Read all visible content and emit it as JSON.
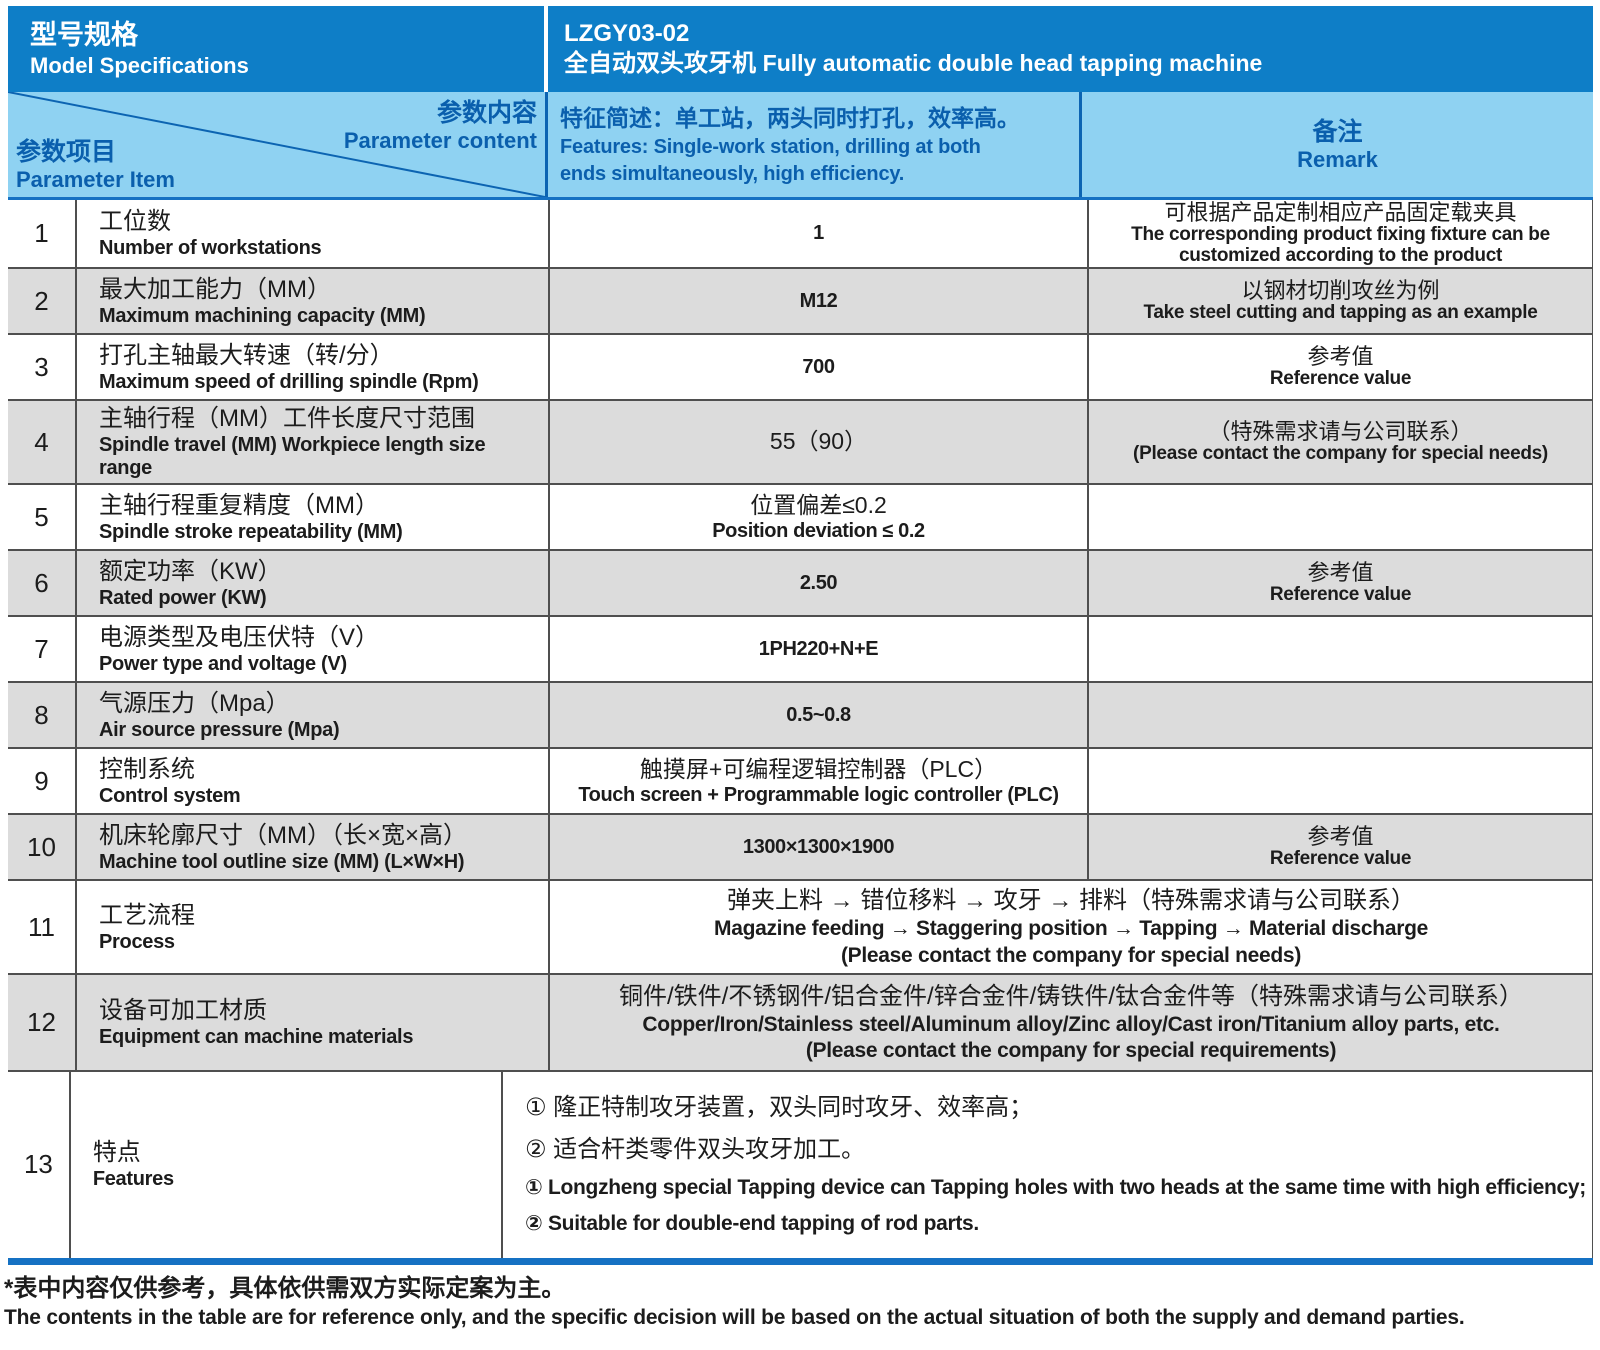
{
  "colors": {
    "blue": "#0e7ec7",
    "light_blue": "#8fd2f2",
    "deep_blue": "#0a5fad",
    "div_blue": "#0c64b2",
    "bar_blue": "#1571c3",
    "gray_row": "#dcdcdc",
    "border": "#4f4f4f",
    "ink": "#1c1c1c"
  },
  "header": {
    "model_label_zh": "型号规格",
    "model_label_en": "Model Specifications",
    "model_code": "LZGY03-02",
    "model_name_zh": "全自动双头攻牙机",
    "model_name_en": "Fully automatic double head tapping machine",
    "param_content_zh": "参数内容",
    "param_content_en": "Parameter content",
    "param_item_zh": "参数项目",
    "param_item_en": "Parameter Item",
    "features_zh": "特征简述：单工站，两头同时打孔，效率高。",
    "features_en_line1": "Features: Single-work station, drilling at both",
    "features_en_line2": "ends simultaneously, high efficiency.",
    "remark_zh": "备注",
    "remark_en": "Remark"
  },
  "rows": [
    {
      "num": "1",
      "item_zh": "工位数",
      "item_en": "Number of workstations",
      "value": [
        "1"
      ],
      "remark": [
        "可根据产品定制相应产品固定载夹具",
        "The corresponding product fixing fixture can be",
        "customized according to the product"
      ]
    },
    {
      "num": "2",
      "item_zh": "最大加工能力（MM）",
      "item_en": "Maximum machining capacity (MM)",
      "value": [
        "M12"
      ],
      "remark": [
        "以钢材切削攻丝为例",
        "Take steel cutting and tapping as an example"
      ]
    },
    {
      "num": "3",
      "item_zh": "打孔主轴最大转速（转/分）",
      "item_en": "Maximum speed of drilling spindle (Rpm)",
      "value": [
        "700"
      ],
      "remark": [
        "参考值",
        "Reference value"
      ]
    },
    {
      "num": "4",
      "item_zh": "主轴行程（MM）工件长度尺寸范围",
      "item_en": "Spindle travel (MM) Workpiece length size range",
      "value": [
        "55（90）"
      ],
      "remark": [
        "（特殊需求请与公司联系）",
        "(Please contact the company for special needs)"
      ]
    },
    {
      "num": "5",
      "item_zh": "主轴行程重复精度（MM）",
      "item_en": "Spindle stroke repeatability (MM)",
      "value": [
        "位置偏差≤0.2",
        "Position deviation ≤ 0.2"
      ],
      "remark": []
    },
    {
      "num": "6",
      "item_zh": "额定功率（KW）",
      "item_en": "Rated power (KW)",
      "value": [
        "2.50"
      ],
      "remark": [
        "参考值",
        "Reference value"
      ]
    },
    {
      "num": "7",
      "item_zh": "电源类型及电压伏特（V）",
      "item_en": "Power type and voltage (V)",
      "value": [
        "1PH220+N+E"
      ],
      "remark": []
    },
    {
      "num": "8",
      "item_zh": "气源压力（Mpa）",
      "item_en": "Air source pressure (Mpa)",
      "value": [
        "0.5~0.8"
      ],
      "remark": []
    },
    {
      "num": "9",
      "item_zh": "控制系统",
      "item_en": "Control system",
      "value": [
        "触摸屏+可编程逻辑控制器（PLC）",
        "Touch screen + Programmable logic controller (PLC)"
      ],
      "remark": []
    },
    {
      "num": "10",
      "item_zh": "机床轮廓尺寸（MM）（长×宽×高）",
      "item_en": "Machine tool outline size (MM) (L×W×H)",
      "value": [
        "1300×1300×1900"
      ],
      "remark": [
        "参考值",
        "Reference value"
      ]
    },
    {
      "num": "11",
      "item_zh": "工艺流程",
      "item_en": "Process",
      "merged": [
        "弹夹上料 → 错位移料 → 攻牙 → 排料（特殊需求请与公司联系）",
        "Magazine feeding → Staggering position → Tapping → Material discharge",
        "(Please contact the company for special needs)"
      ],
      "align": "center"
    },
    {
      "num": "12",
      "item_zh": "设备可加工材质",
      "item_en": "Equipment can machine materials",
      "merged": [
        "铜件/铁件/不锈钢件/铝合金件/锌合金件/铸铁件/钛合金件等（特殊需求请与公司联系）",
        "Copper/Iron/Stainless steel/Aluminum alloy/Zinc alloy/Cast iron/Titanium alloy parts, etc.",
        "(Please contact the company for special requirements)"
      ],
      "align": "center"
    },
    {
      "num": "13",
      "item_zh": "特点",
      "item_en": "Features",
      "merged": [
        "① 隆正特制攻牙装置，双头同时攻牙、效率高；",
        "② 适合杆类零件双头攻牙加工。",
        "① Longzheng special Tapping device can Tapping holes with two heads at the same time with high efficiency;",
        "② Suitable for double-end tapping of rod parts."
      ],
      "align": "left"
    }
  ],
  "footer": {
    "note_zh": "*表中内容仅供参考，具体依供需双方实际定案为主。",
    "note_en": "The contents in the table are for reference only, and the specific decision will be based on the actual situation of both the supply and demand parties."
  }
}
